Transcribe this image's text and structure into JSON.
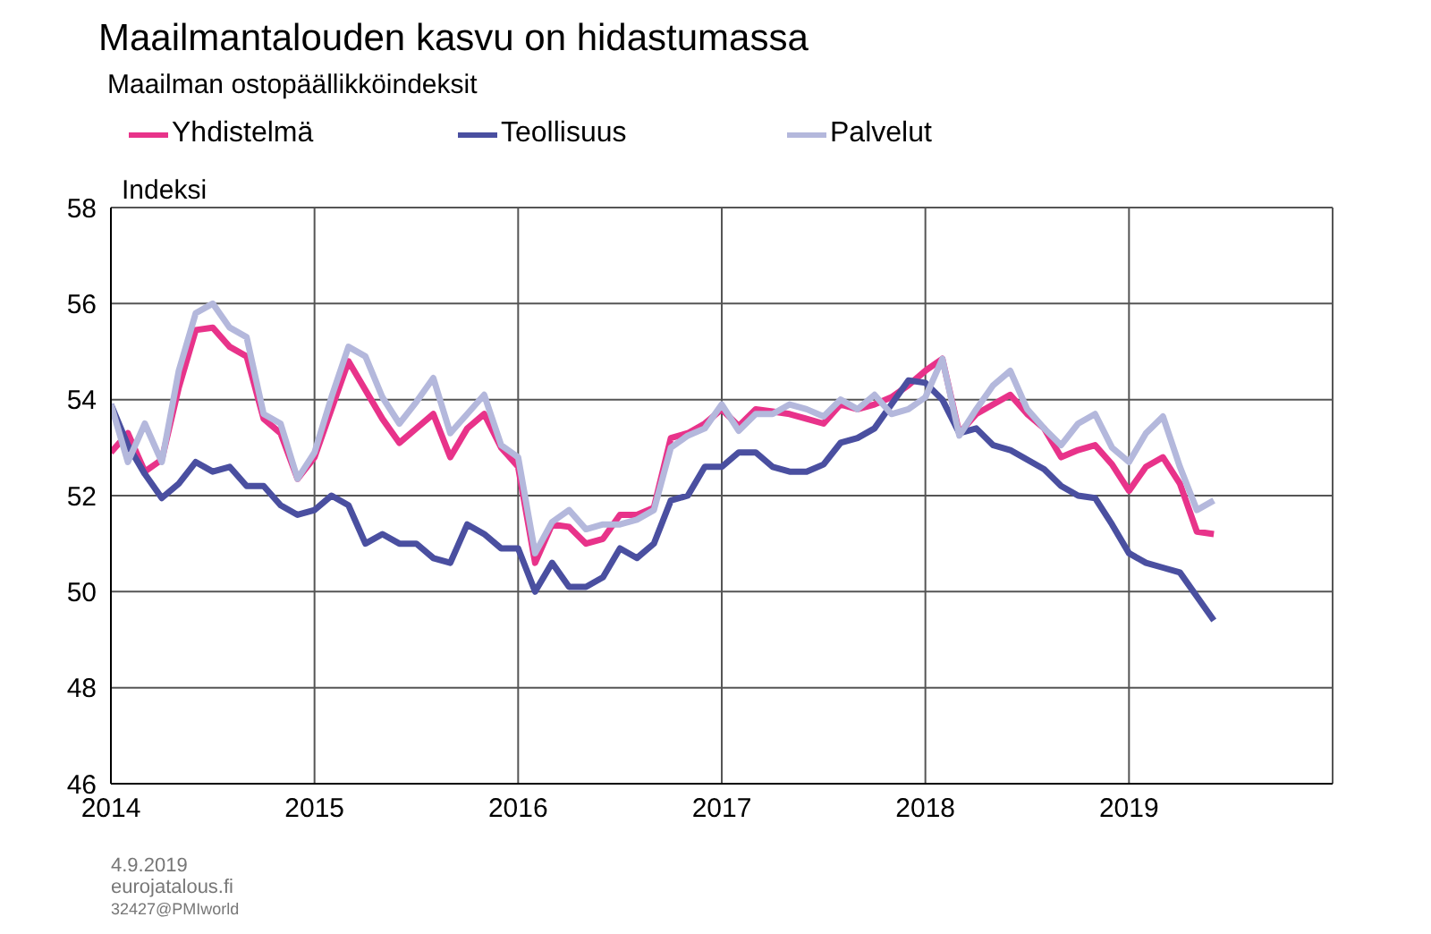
{
  "chart_data": {
    "type": "line",
    "title": "Maailmantalouden kasvu on hidastumassa",
    "subtitle": "Maailman ostopäällikköindeksit",
    "ylabel": "Indeksi",
    "x": [
      "2014-01",
      "2014-02",
      "2014-03",
      "2014-04",
      "2014-05",
      "2014-06",
      "2014-07",
      "2014-08",
      "2014-09",
      "2014-10",
      "2014-11",
      "2014-12",
      "2015-01",
      "2015-02",
      "2015-03",
      "2015-04",
      "2015-05",
      "2015-06",
      "2015-07",
      "2015-08",
      "2015-09",
      "2015-10",
      "2015-11",
      "2015-12",
      "2016-01",
      "2016-02",
      "2016-03",
      "2016-04",
      "2016-05",
      "2016-06",
      "2016-07",
      "2016-08",
      "2016-09",
      "2016-10",
      "2016-11",
      "2016-12",
      "2017-01",
      "2017-02",
      "2017-03",
      "2017-04",
      "2017-05",
      "2017-06",
      "2017-07",
      "2017-08",
      "2017-09",
      "2017-10",
      "2017-11",
      "2017-12",
      "2018-01",
      "2018-02",
      "2018-03",
      "2018-04",
      "2018-05",
      "2018-06",
      "2018-07",
      "2018-08",
      "2018-09",
      "2018-10",
      "2018-11",
      "2018-12",
      "2019-01",
      "2019-02",
      "2019-03",
      "2019-04",
      "2019-05",
      "2019-06"
    ],
    "series": [
      {
        "name": "Yhdistelmä",
        "color": "#e8338a",
        "values": [
          52.9,
          53.3,
          52.5,
          52.75,
          54.25,
          55.45,
          55.5,
          55.1,
          54.9,
          53.6,
          53.3,
          52.35,
          52.8,
          53.8,
          54.8,
          54.2,
          53.6,
          53.1,
          53.4,
          53.7,
          52.8,
          53.4,
          53.7,
          53.0,
          52.6,
          50.6,
          51.4,
          51.35,
          51.0,
          51.1,
          51.6,
          51.6,
          51.75,
          53.2,
          53.3,
          53.5,
          53.8,
          53.45,
          53.8,
          53.75,
          53.7,
          53.6,
          53.5,
          53.9,
          53.8,
          53.9,
          54.05,
          54.3,
          54.6,
          54.85,
          53.3,
          53.7,
          53.9,
          54.1,
          53.7,
          53.4,
          52.8,
          52.95,
          53.05,
          52.65,
          52.1,
          52.6,
          52.8,
          52.25,
          51.25,
          51.2
        ]
      },
      {
        "name": "Teollisuus",
        "color": "#4a4fa0",
        "values": [
          53.9,
          53.05,
          52.45,
          51.95,
          52.25,
          52.7,
          52.5,
          52.6,
          52.2,
          52.2,
          51.8,
          51.6,
          51.7,
          52.0,
          51.8,
          51.0,
          51.2,
          51.0,
          51.0,
          50.7,
          50.6,
          51.4,
          51.2,
          50.9,
          50.9,
          50.0,
          50.6,
          50.1,
          50.1,
          50.3,
          50.9,
          50.7,
          51.0,
          51.9,
          52.0,
          52.6,
          52.6,
          52.9,
          52.9,
          52.6,
          52.5,
          52.5,
          52.65,
          53.1,
          53.2,
          53.4,
          53.9,
          54.4,
          54.35,
          54.0,
          53.3,
          53.4,
          53.05,
          52.95,
          52.75,
          52.55,
          52.2,
          52.0,
          51.95,
          51.4,
          50.8,
          50.6,
          50.5,
          50.4,
          49.9,
          49.4
        ]
      },
      {
        "name": "Palvelut",
        "color": "#b4b8dc",
        "values": [
          53.9,
          52.7,
          53.5,
          52.7,
          54.6,
          55.8,
          56.0,
          55.5,
          55.3,
          53.7,
          53.5,
          52.35,
          52.9,
          54.05,
          55.1,
          54.9,
          54.05,
          53.5,
          53.95,
          54.45,
          53.3,
          53.7,
          54.1,
          53.05,
          52.8,
          50.8,
          51.45,
          51.7,
          51.3,
          51.4,
          51.4,
          51.5,
          51.7,
          53.0,
          53.25,
          53.4,
          53.9,
          53.35,
          53.7,
          53.7,
          53.9,
          53.8,
          53.65,
          54.0,
          53.8,
          54.1,
          53.7,
          53.8,
          54.05,
          54.85,
          53.25,
          53.8,
          54.3,
          54.6,
          53.8,
          53.4,
          53.05,
          53.5,
          53.7,
          53.0,
          52.7,
          53.3,
          53.65,
          52.6,
          51.7,
          51.9
        ]
      }
    ],
    "xlim": [
      "2014-01",
      "2020-01"
    ],
    "xticks": [
      "2014",
      "2015",
      "2016",
      "2017",
      "2018",
      "2019",
      {
        "value": "2020",
        "label": null
      }
    ],
    "ylim": [
      46,
      58
    ],
    "yticks": [
      46,
      48,
      50,
      52,
      54,
      56,
      58
    ],
    "grid": true,
    "legend": "top",
    "marker": "none",
    "line_style": "solid",
    "annotations": [
      "4.9.2019",
      "eurojatalous.fi",
      "32427@PMIworld"
    ]
  }
}
